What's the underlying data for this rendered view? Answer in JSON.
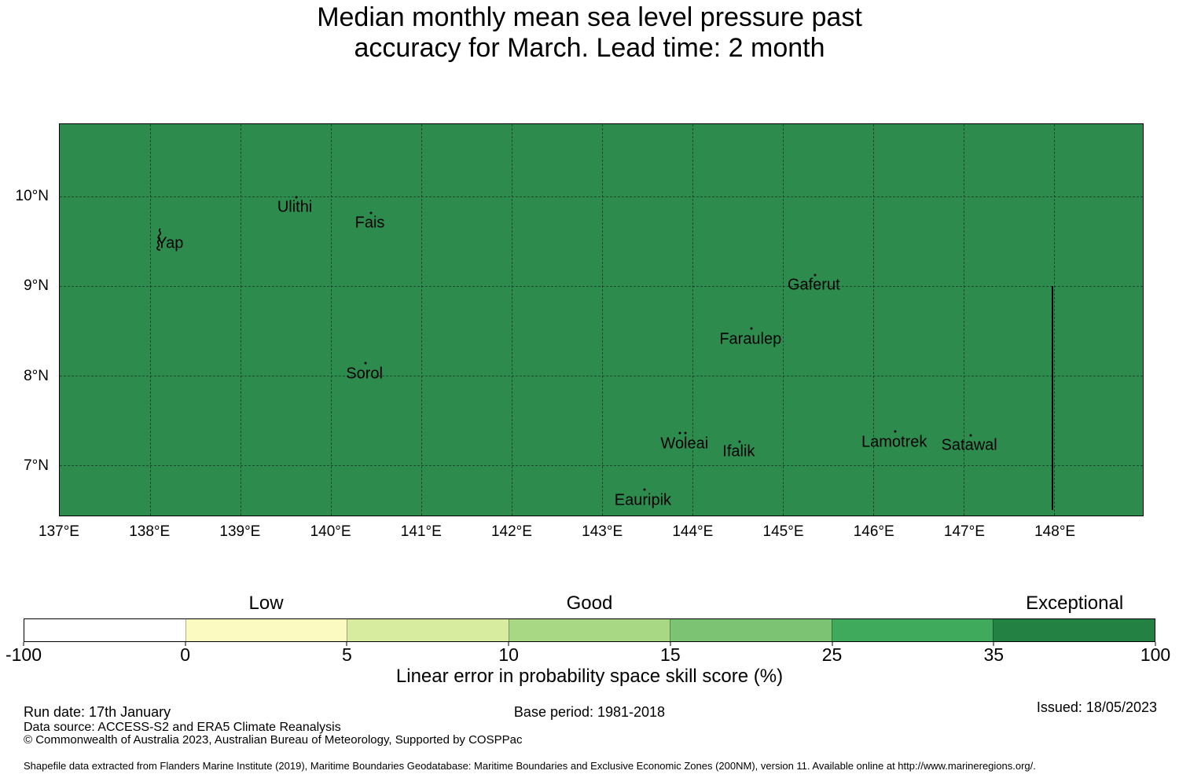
{
  "title": {
    "line1": "Median monthly mean sea level pressure past",
    "line2": "accuracy for March. Lead time: 2 month"
  },
  "map": {
    "fill_color": "#2e8b4e",
    "extent": {
      "lon_min": 137.0,
      "lon_max": 148.98,
      "lat_min": 6.44,
      "lat_max": 10.81
    },
    "lon_gridlines": [
      138,
      139,
      140,
      141,
      142,
      143,
      144,
      145,
      146,
      147,
      148
    ],
    "lat_gridlines": [
      7,
      8,
      9,
      10
    ],
    "lon_ticks": [
      {
        "label": "137°E",
        "value": 137
      },
      {
        "label": "138°E",
        "value": 138
      },
      {
        "label": "139°E",
        "value": 139
      },
      {
        "label": "140°E",
        "value": 140
      },
      {
        "label": "141°E",
        "value": 141
      },
      {
        "label": "142°E",
        "value": 142
      },
      {
        "label": "143°E",
        "value": 143
      },
      {
        "label": "144°E",
        "value": 144
      },
      {
        "label": "145°E",
        "value": 145
      },
      {
        "label": "146°E",
        "value": 146
      },
      {
        "label": "147°E",
        "value": 147
      },
      {
        "label": "148°E",
        "value": 148
      }
    ],
    "lat_ticks": [
      {
        "label": "10°N",
        "value": 10
      },
      {
        "label": "9°N",
        "value": 9
      },
      {
        "label": "8°N",
        "value": 8
      },
      {
        "label": "7°N",
        "value": 7
      }
    ],
    "islands": [
      {
        "name": "Yap",
        "lon": 138.22,
        "lat": 9.48,
        "marker_dots": 0,
        "islet": {
          "lon": 138.1,
          "lat": 9.52
        }
      },
      {
        "name": "Ulithi",
        "lon": 139.6,
        "lat": 9.88,
        "marker_dots": 1
      },
      {
        "name": "Fais",
        "lon": 140.43,
        "lat": 9.7,
        "marker_dots": 1
      },
      {
        "name": "Sorol",
        "lon": 140.37,
        "lat": 8.02,
        "marker_dots": 1
      },
      {
        "name": "Gaferut",
        "lon": 145.34,
        "lat": 9.01,
        "marker_dots": 1
      },
      {
        "name": "Faraulep",
        "lon": 144.64,
        "lat": 8.41,
        "marker_dots": 1
      },
      {
        "name": "Woleai",
        "lon": 143.91,
        "lat": 7.24,
        "marker_dots": 2
      },
      {
        "name": "Ifalik",
        "lon": 144.51,
        "lat": 7.15,
        "marker_dots": 1
      },
      {
        "name": "Lamotrek",
        "lon": 146.23,
        "lat": 7.26,
        "marker_dots": 1
      },
      {
        "name": "Satawal",
        "lon": 147.06,
        "lat": 7.22,
        "marker_dots": 1
      },
      {
        "name": "Eauripik",
        "lon": 143.45,
        "lat": 6.61,
        "marker_dots": 1
      }
    ],
    "boundary_line": {
      "lon": 147.98,
      "lat_from": 9.0,
      "lat_to": 6.5
    }
  },
  "colorbar": {
    "boundaries": [
      "-100",
      "0",
      "5",
      "10",
      "15",
      "25",
      "35",
      "100"
    ],
    "segment_colors": [
      "#ffffff",
      "#fbfbc1",
      "#d8ec9f",
      "#a9d884",
      "#7cc474",
      "#3fa95c",
      "#238144"
    ],
    "quality_labels": [
      {
        "text": "Low",
        "segment_index": 1
      },
      {
        "text": "Good",
        "segment_index": 3
      },
      {
        "text": "Exceptional",
        "segment_index": 6
      }
    ],
    "axis_label": "Linear error in probability space skill score (%)"
  },
  "footer": {
    "run_date": "Run date: 17th January",
    "base_period": "Base period: 1981-2018",
    "issued": "Issued: 18/05/2023",
    "data_source": "Data source: ACCESS-S2 and ERA5 Climate Reanalysis",
    "copyright": "© Commonwealth of Australia 2023, Australian Bureau of Meteorology, Supported by COSPPac",
    "shapefile_note": "Shapefile data extracted from Flanders Marine Institute (2019), Maritime Boundaries Geodatabase: Maritime Boundaries and Exclusive Economic Zones (200NM), version 11. Available online at http://www.marineregions.org/."
  }
}
